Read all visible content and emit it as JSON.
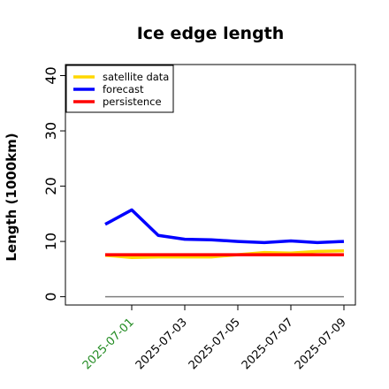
{
  "chart_data": {
    "type": "line",
    "title": "Ice edge length",
    "xlabel": "",
    "ylabel": "Length (1000km)",
    "ylim": [
      -1.5,
      42
    ],
    "yticks": [
      0,
      10,
      20,
      30,
      40
    ],
    "x": [
      "2025-06-30",
      "2025-07-01",
      "2025-07-02",
      "2025-07-03",
      "2025-07-04",
      "2025-07-05",
      "2025-07-06",
      "2025-07-07",
      "2025-07-08",
      "2025-07-09"
    ],
    "xlim": [
      "2025-06-29",
      "2025-07-09"
    ],
    "xticks": [
      {
        "label": "2025-07-01",
        "x": "2025-07-01",
        "color": "#228B22"
      },
      {
        "label": "2025-07-03",
        "x": "2025-07-03",
        "color": "#000000"
      },
      {
        "label": "2025-07-05",
        "x": "2025-07-05",
        "color": "#000000"
      },
      {
        "label": "2025-07-07",
        "x": "2025-07-07",
        "color": "#000000"
      },
      {
        "label": "2025-07-09",
        "x": "2025-07-09",
        "color": "#000000"
      }
    ],
    "legend": {
      "placement": "top-left"
    },
    "grid": false,
    "series": [
      {
        "name": "satellite data",
        "color": "#FFD700",
        "values": [
          7.5,
          7.1,
          7.2,
          7.2,
          7.2,
          7.6,
          8.0,
          7.9,
          8.2,
          8.3
        ]
      },
      {
        "name": "forecast",
        "color": "#0000FF",
        "values": [
          13.1,
          15.7,
          11.1,
          10.4,
          10.3,
          10.0,
          9.8,
          10.1,
          9.8,
          10.0
        ]
      },
      {
        "name": "persistence",
        "color": "#FF0000",
        "values": [
          7.6,
          7.6,
          7.6,
          7.6,
          7.6,
          7.6,
          7.6,
          7.6,
          7.6,
          7.6
        ]
      }
    ],
    "baseline": {
      "color": "#7f7f7f",
      "values": [
        0,
        0,
        0,
        0,
        0,
        0,
        0,
        0,
        0,
        0
      ]
    }
  }
}
